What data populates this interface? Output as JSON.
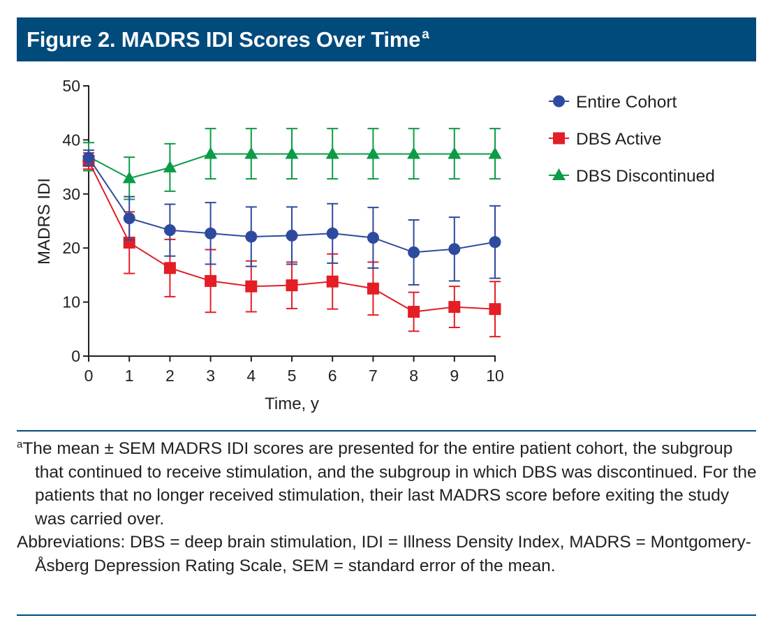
{
  "figure": {
    "title": "Figure 2. MADRS IDI Scores Over Time",
    "title_sup": "a",
    "accent_color": "#004a7c"
  },
  "chart_data": {
    "type": "line",
    "title": "",
    "xlabel": "Time, y",
    "ylabel": "MADRS IDI",
    "x": [
      0,
      1,
      2,
      3,
      4,
      5,
      6,
      7,
      8,
      9,
      10
    ],
    "xlim": [
      0,
      10
    ],
    "ylim": [
      0,
      50
    ],
    "yticks": [
      0,
      10,
      20,
      30,
      40,
      50
    ],
    "grid": false,
    "legend_position": "right",
    "error_bars": "mean ± SEM",
    "series": [
      {
        "name": "Entire Cohort",
        "color": "#2e4a9e",
        "marker": "circle",
        "values": [
          36.7,
          25.5,
          23.3,
          22.7,
          22.1,
          22.3,
          22.7,
          21.9,
          19.2,
          19.8,
          21.1
        ],
        "err_low": [
          35.3,
          21.5,
          18.5,
          17.0,
          16.6,
          17.0,
          17.2,
          16.3,
          13.2,
          13.9,
          14.4
        ],
        "err_high": [
          38.1,
          29.5,
          28.1,
          28.4,
          27.6,
          27.6,
          28.2,
          27.5,
          25.2,
          25.7,
          27.8
        ]
      },
      {
        "name": "DBS Active",
        "color": "#e31e26",
        "marker": "square",
        "values": [
          36.1,
          21.0,
          16.3,
          13.9,
          12.9,
          13.1,
          13.8,
          12.5,
          8.2,
          9.1,
          8.7
        ],
        "err_low": [
          34.6,
          15.3,
          11.0,
          8.1,
          8.2,
          8.8,
          8.7,
          7.6,
          4.6,
          5.3,
          3.6
        ],
        "err_high": [
          37.6,
          26.7,
          21.6,
          19.7,
          17.6,
          17.4,
          18.9,
          17.4,
          11.8,
          12.9,
          13.8
        ]
      },
      {
        "name": "DBS Discontinued",
        "color": "#0c9b47",
        "marker": "triangle",
        "values": [
          36.9,
          32.9,
          34.9,
          37.4,
          37.4,
          37.4,
          37.4,
          37.4,
          37.4,
          37.4,
          37.4
        ],
        "err_low": [
          34.3,
          29.0,
          30.5,
          32.8,
          32.8,
          32.8,
          32.8,
          32.8,
          32.8,
          32.8,
          32.8
        ],
        "err_high": [
          39.5,
          36.8,
          39.3,
          42.1,
          42.1,
          42.1,
          42.1,
          42.1,
          42.1,
          42.1,
          42.1
        ]
      }
    ]
  },
  "footnote": {
    "marker": "a",
    "text": "The mean ± SEM MADRS IDI scores are presented for the entire patient cohort, the subgroup that continued to receive stimulation, and the subgroup in which DBS was discontinued. For the patients that no longer received stimulation, their last MADRS score before exiting the study was carried over.",
    "abbreviations": "Abbreviations: DBS = deep brain stimulation, IDI = Illness Density Index, MADRS = Montgomery-Åsberg Depression Rating Scale, SEM = standard error of the mean."
  }
}
